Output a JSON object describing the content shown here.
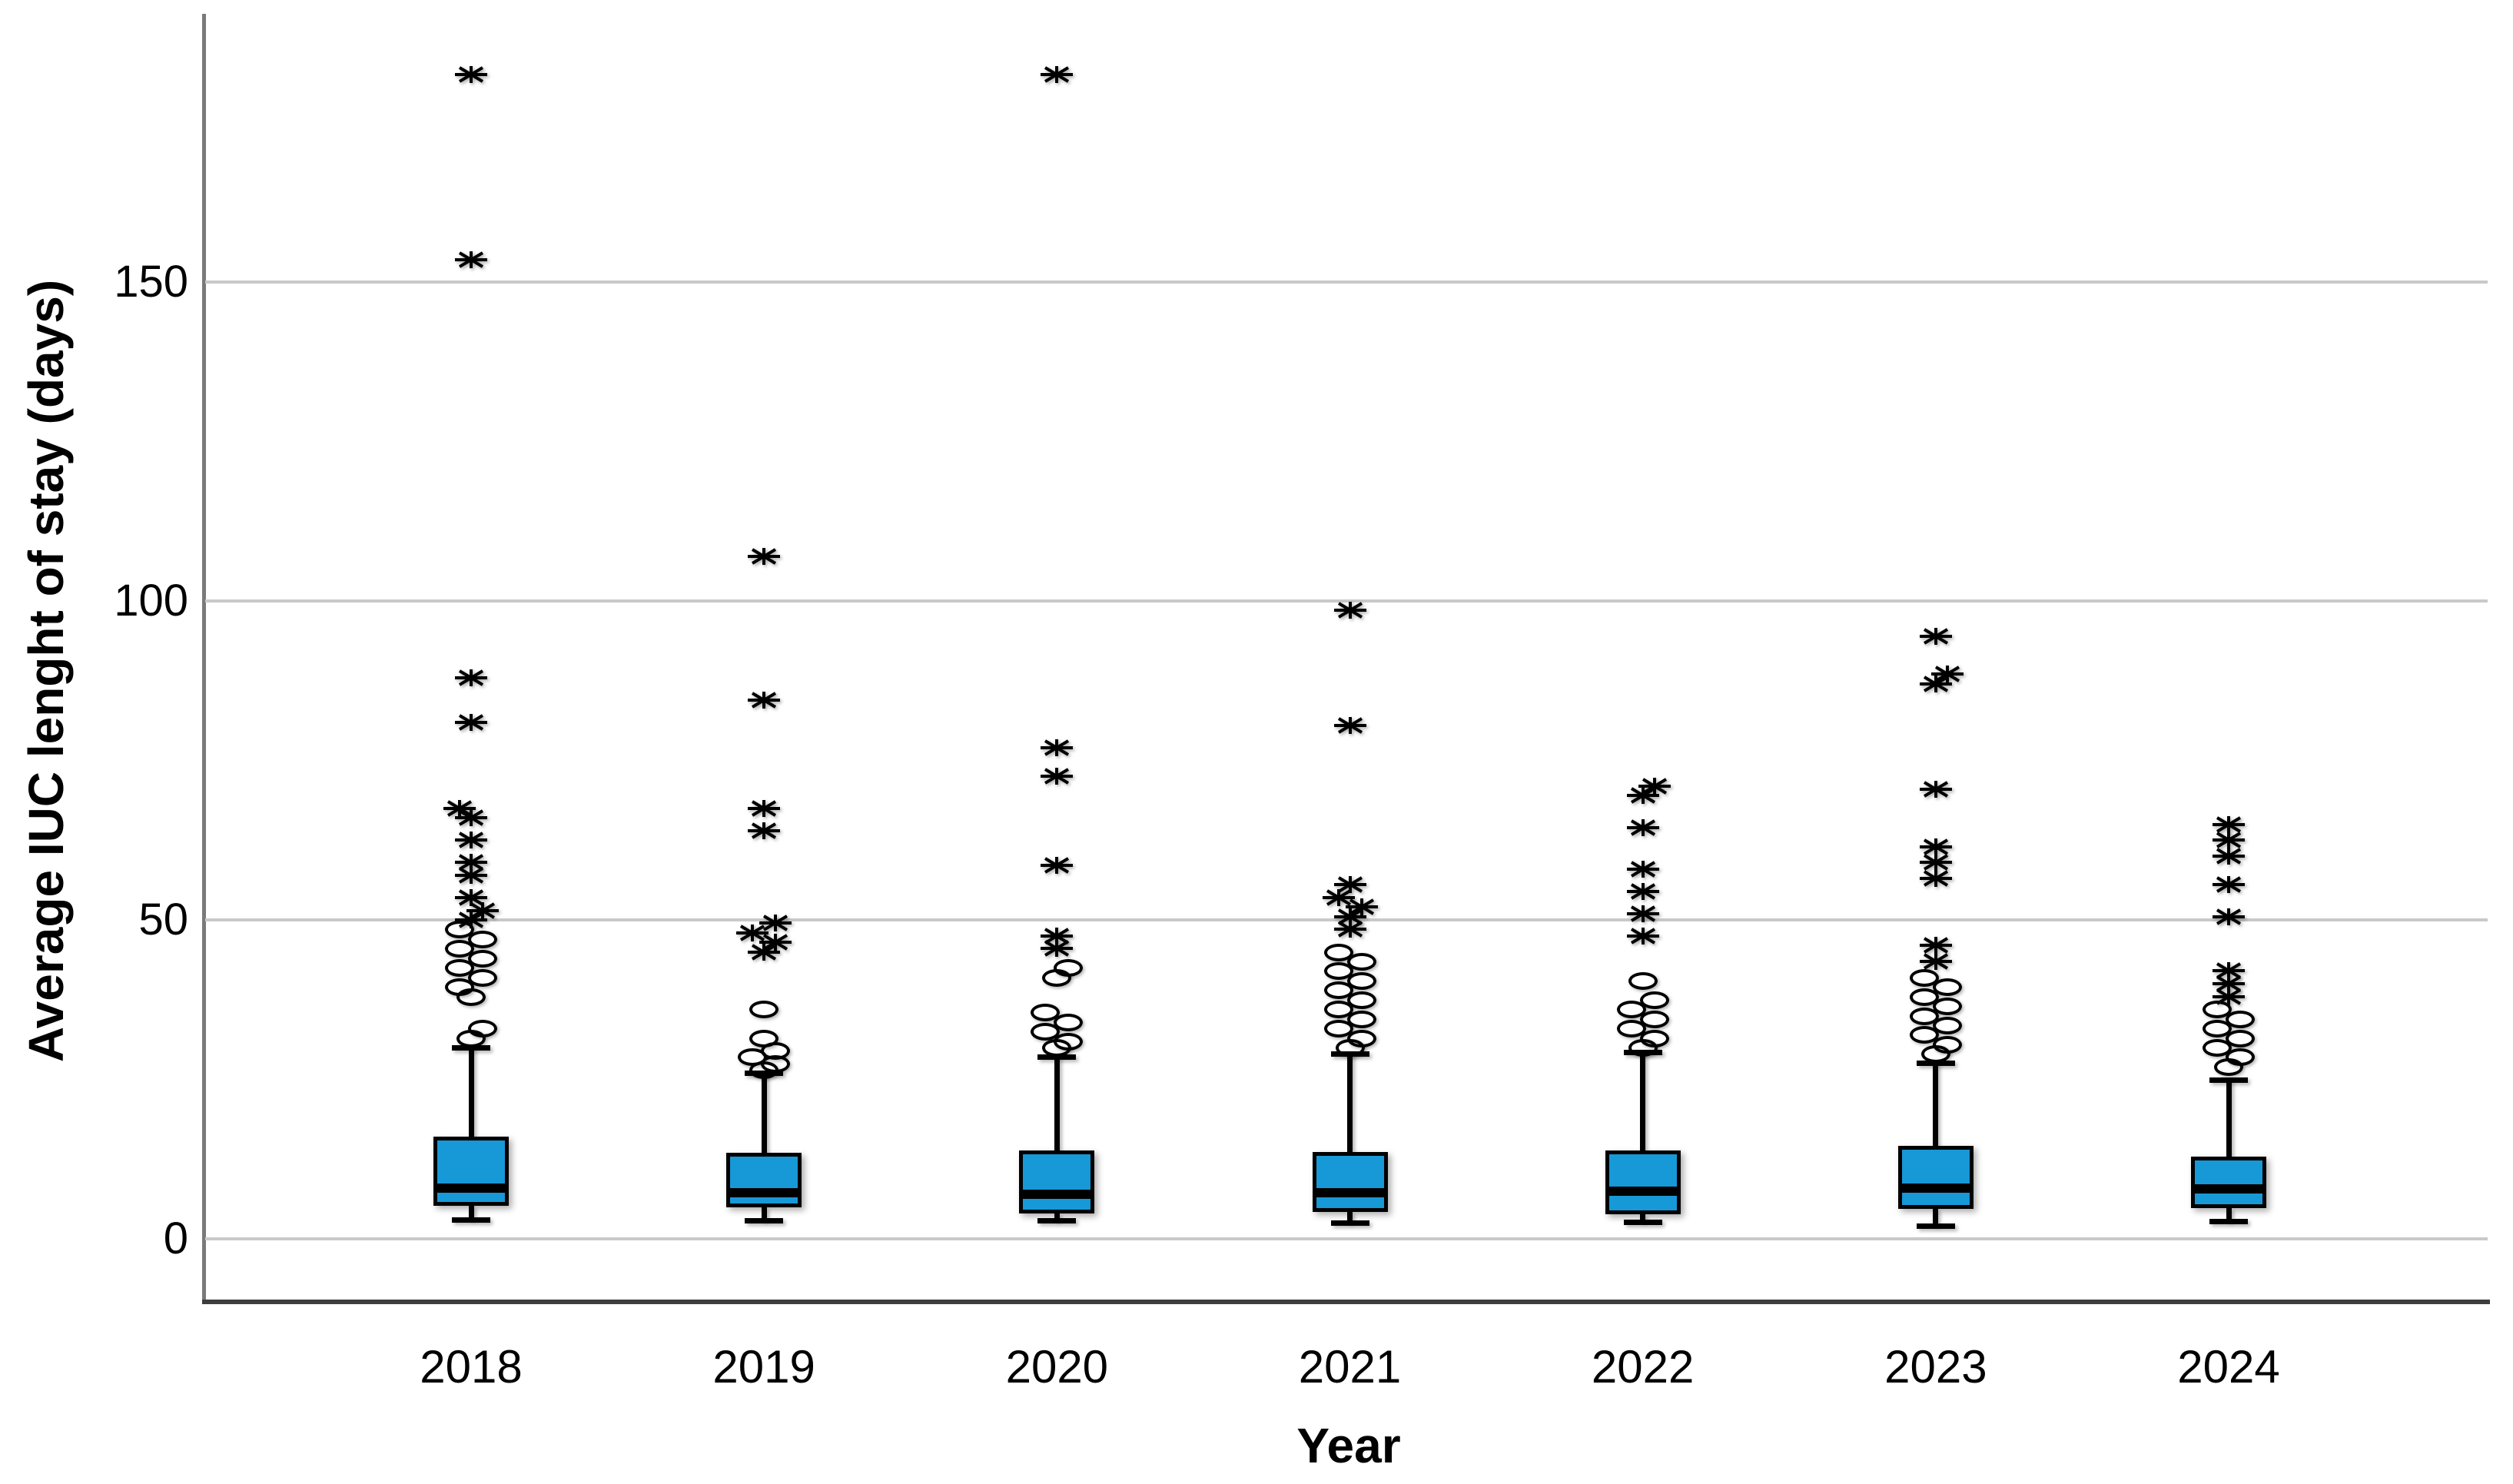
{
  "figure": {
    "background": "#ffffff",
    "title": ""
  },
  "chart_data": {
    "type": "box",
    "title": "",
    "xlabel": "Year",
    "ylabel": "Average IUC lenght of stay (days)",
    "categories": [
      "2018",
      "2019",
      "2020",
      "2021",
      "2022",
      "2023",
      "2024"
    ],
    "yticks": [
      0,
      50,
      100,
      150
    ],
    "ylim": [
      -10,
      192
    ],
    "grid": "horizontal-only",
    "legend": "none",
    "marker_legend": {
      "circle": "outlier",
      "star": "extreme value"
    },
    "colors": {
      "box_fill": "#1798d7",
      "box_border": "#000000",
      "median_line": "#000000",
      "whisker": "#000000",
      "outlier_marker": "#000000",
      "gridline": "#c9c9c9",
      "y_axis_line": "#7a7a7a",
      "x_axis_line": "#3d3d3d",
      "text": "#000000"
    },
    "series": [
      {
        "category": "2018",
        "whisker_low": 3.0,
        "q1": 5.2,
        "median": 7.9,
        "q3": 16.0,
        "whisker_high": 30.0,
        "outliers_circles": [
          31.5,
          33,
          38,
          39.5,
          41,
          42.5,
          44,
          45.5,
          47,
          48.5
        ],
        "extremes_stars": [
          50,
          51.5,
          53.5,
          57,
          59,
          62.5,
          66,
          67.5,
          81,
          88,
          153.5,
          182.5
        ]
      },
      {
        "category": "2019",
        "whisker_low": 2.9,
        "q1": 4.9,
        "median": 7.2,
        "q3": 13.5,
        "whisker_high": 26.0,
        "outliers_circles": [
          26.5,
          27.5,
          28.5,
          29.5,
          31.5,
          36
        ],
        "extremes_stars": [
          45,
          46.5,
          48,
          49.5,
          64,
          67.5,
          84.5,
          107
        ]
      },
      {
        "category": "2020",
        "whisker_low": 2.9,
        "q1": 4.0,
        "median": 7.0,
        "q3": 13.9,
        "whisker_high": 28.5,
        "outliers_circles": [
          30,
          31,
          32.5,
          34,
          35.5,
          41,
          42.5
        ],
        "extremes_stars": [
          45.5,
          47.5,
          58.5,
          72.5,
          77,
          182.5
        ]
      },
      {
        "category": "2021",
        "whisker_low": 2.5,
        "q1": 4.2,
        "median": 7.2,
        "q3": 13.6,
        "whisker_high": 29.0,
        "outliers_circles": [
          30,
          31.5,
          33,
          34.5,
          36,
          37.5,
          39,
          40.5,
          42,
          43.5,
          45
        ],
        "extremes_stars": [
          48.5,
          50.5,
          52,
          53.5,
          55.5,
          80.5,
          98.5
        ]
      },
      {
        "category": "2022",
        "whisker_low": 2.6,
        "q1": 3.9,
        "median": 7.5,
        "q3": 13.8,
        "whisker_high": 29.3,
        "outliers_circles": [
          30,
          31.5,
          33,
          34.5,
          36,
          37.5,
          40.5
        ],
        "extremes_stars": [
          47.5,
          51,
          54.5,
          58,
          64.5,
          69.5,
          71
        ]
      },
      {
        "category": "2023",
        "whisker_low": 2.0,
        "q1": 4.7,
        "median": 8.0,
        "q3": 14.6,
        "whisker_high": 27.6,
        "outliers_circles": [
          29,
          30.5,
          32,
          33.5,
          35,
          36.5,
          38,
          39.5,
          41
        ],
        "extremes_stars": [
          43.5,
          46,
          56.5,
          59,
          61.5,
          70.5,
          87,
          88.5,
          94.5
        ]
      },
      {
        "category": "2024",
        "whisker_low": 2.8,
        "q1": 4.8,
        "median": 7.8,
        "q3": 12.9,
        "whisker_high": 24.9,
        "outliers_circles": [
          27,
          28.5,
          30,
          31.5,
          33,
          34.5,
          36
        ],
        "extremes_stars": [
          38,
          40,
          42,
          50.5,
          55.5,
          60,
          62.5,
          65
        ]
      }
    ]
  }
}
